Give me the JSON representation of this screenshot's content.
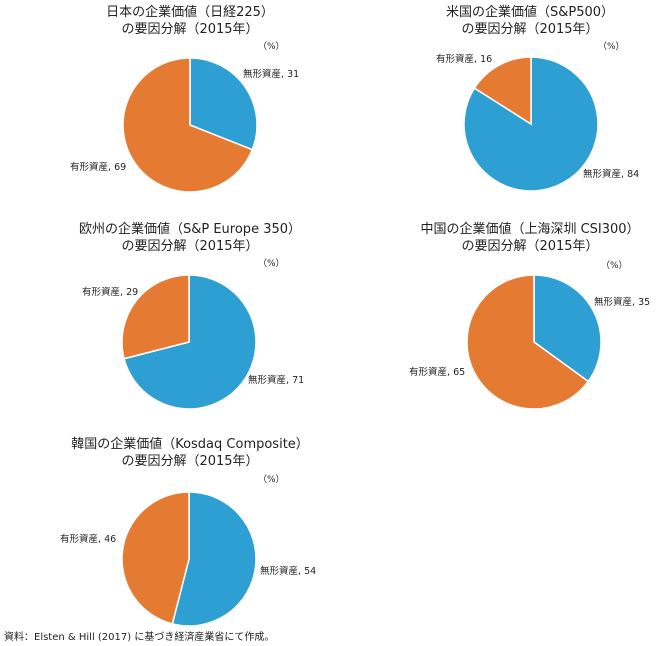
{
  "chart_data": [
    {
      "type": "pie",
      "title": [
        "日本の企業価値（日経225）",
        "の要因分解（2015年）"
      ],
      "unit": "（%）",
      "slices": [
        {
          "label": "無形資産",
          "value": 31,
          "color": "#2e9fd3"
        },
        {
          "label": "有形資産",
          "value": 69,
          "color": "#e57a33"
        }
      ]
    },
    {
      "type": "pie",
      "title": [
        "米国の企業価値（S&P500）",
        "の要因分解（2015年）"
      ],
      "unit": "（%）",
      "slices": [
        {
          "label": "無形資産",
          "value": 84,
          "color": "#2e9fd3"
        },
        {
          "label": "有形資産",
          "value": 16,
          "color": "#e57a33"
        }
      ]
    },
    {
      "type": "pie",
      "title": [
        "欧州の企業価値（S&P Europe 350）",
        "の要因分解（2015年）"
      ],
      "unit": "（%）",
      "slices": [
        {
          "label": "無形資産",
          "value": 71,
          "color": "#2e9fd3"
        },
        {
          "label": "有形資産",
          "value": 29,
          "color": "#e57a33"
        }
      ]
    },
    {
      "type": "pie",
      "title": [
        "中国の企業価値（上海深圳 CSI300）",
        "の要因分解（2015年）"
      ],
      "unit": "（%）",
      "slices": [
        {
          "label": "無形資産",
          "value": 35,
          "color": "#2e9fd3"
        },
        {
          "label": "有形資産",
          "value": 65,
          "color": "#e57a33"
        }
      ]
    },
    {
      "type": "pie",
      "title": [
        "韓国の企業価値（Kosdaq Composite）",
        "の要因分解（2015年）"
      ],
      "unit": "（%）",
      "slices": [
        {
          "label": "無形資産",
          "value": 54,
          "color": "#2e9fd3"
        },
        {
          "label": "有形資産",
          "value": 46,
          "color": "#e57a33"
        }
      ]
    }
  ],
  "source": "資料：Elsten & Hill (2017) に基づき経済産業省にて作成。"
}
